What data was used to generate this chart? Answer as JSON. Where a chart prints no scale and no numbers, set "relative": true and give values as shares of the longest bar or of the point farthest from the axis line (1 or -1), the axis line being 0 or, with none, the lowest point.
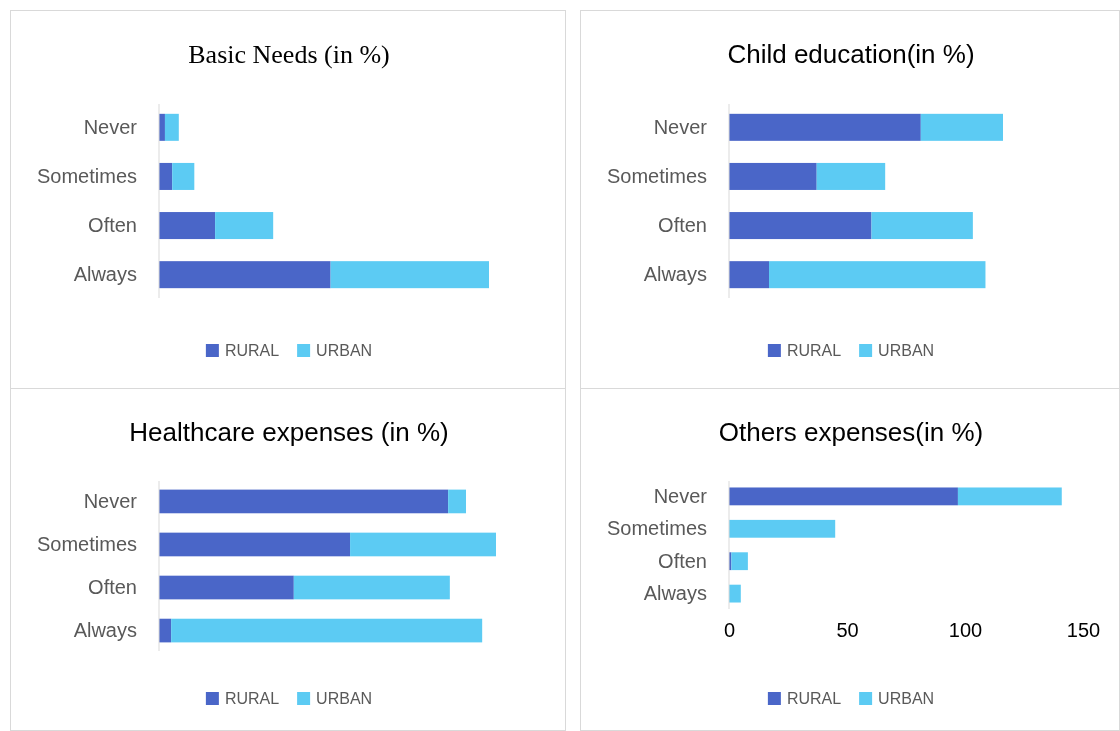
{
  "chart_data": [
    {
      "type": "bar",
      "title": "Basic Needs (in %)",
      "orientation": "horizontal",
      "stacked": true,
      "relative": true,
      "legend": "bottom",
      "categories": [
        "Never",
        "Sometimes",
        "Often",
        "Always"
      ],
      "series": [
        {
          "name": "RURAL",
          "color": "#4a66c8",
          "values": [
            0.018,
            0.04,
            0.17,
            0.52
          ]
        },
        {
          "name": "URBAN",
          "color": "#5ccbf3",
          "values": [
            0.042,
            0.067,
            0.176,
            0.48
          ]
        }
      ]
    },
    {
      "type": "bar",
      "title": "Child education(in %)",
      "orientation": "horizontal",
      "stacked": true,
      "relative": true,
      "legend": "bottom",
      "categories": [
        "Never",
        "Sometimes",
        "Often",
        "Always"
      ],
      "series": [
        {
          "name": "RURAL",
          "color": "#4a66c8",
          "values": [
            0.7,
            0.32,
            0.52,
            0.146
          ]
        },
        {
          "name": "URBAN",
          "color": "#5ccbf3",
          "values": [
            0.3,
            0.25,
            0.37,
            0.79
          ]
        }
      ]
    },
    {
      "type": "bar",
      "title": "Healthcare expenses (in %)",
      "orientation": "horizontal",
      "stacked": true,
      "relative": true,
      "legend": "bottom",
      "categories": [
        "Never",
        "Sometimes",
        "Often",
        "Always"
      ],
      "series": [
        {
          "name": "RURAL",
          "color": "#4a66c8",
          "values": [
            0.858,
            0.567,
            0.4,
            0.036
          ]
        },
        {
          "name": "URBAN",
          "color": "#5ccbf3",
          "values": [
            0.053,
            0.433,
            0.463,
            0.923
          ]
        }
      ]
    },
    {
      "type": "bar",
      "title": "Others expenses(in %)",
      "orientation": "horizontal",
      "stacked": true,
      "legend": "bottom",
      "xlim": [
        0,
        150
      ],
      "xticks": [
        0,
        50,
        100,
        150
      ],
      "categories": [
        "Never",
        "Sometimes",
        "Often",
        "Always"
      ],
      "series": [
        {
          "name": "RURAL",
          "color": "#4a66c8",
          "values": [
            97,
            0,
            1,
            0
          ]
        },
        {
          "name": "URBAN",
          "color": "#5ccbf3",
          "values": [
            44,
            45,
            7,
            5
          ]
        }
      ]
    }
  ]
}
